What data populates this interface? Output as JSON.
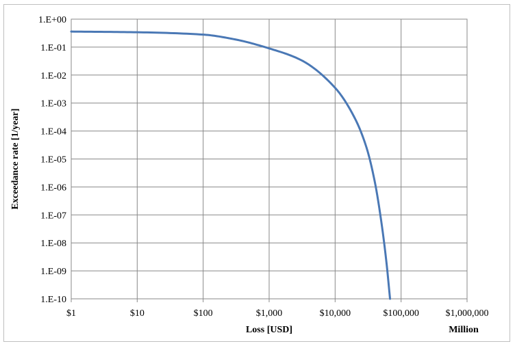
{
  "chart_data": {
    "type": "line",
    "title": "",
    "xlabel": "Loss [USD]",
    "xlabel_note": "Million",
    "ylabel": "Exceedance rate [1/year]",
    "x_scale": "log",
    "y_scale": "log",
    "xlim": [
      1,
      1000000
    ],
    "ylim": [
      1e-10,
      1
    ],
    "grid": true,
    "legend": "none",
    "line_color": "#4a78b5",
    "x_ticks": [
      {
        "value": 1,
        "label": "$1"
      },
      {
        "value": 10,
        "label": "$10"
      },
      {
        "value": 100,
        "label": "$100"
      },
      {
        "value": 1000,
        "label": "$1,000"
      },
      {
        "value": 10000,
        "label": "$10,000"
      },
      {
        "value": 100000,
        "label": "$100,000"
      },
      {
        "value": 1000000,
        "label": "$1,000,000"
      }
    ],
    "y_ticks": [
      {
        "value": 1,
        "label": "1.E+00"
      },
      {
        "value": 0.1,
        "label": "1.E-01"
      },
      {
        "value": 0.01,
        "label": "1.E-02"
      },
      {
        "value": 0.001,
        "label": "1.E-03"
      },
      {
        "value": 0.0001,
        "label": "1.E-04"
      },
      {
        "value": 1e-05,
        "label": "1.E-05"
      },
      {
        "value": 1e-06,
        "label": "1.E-06"
      },
      {
        "value": 1e-07,
        "label": "1.E-07"
      },
      {
        "value": 1e-08,
        "label": "1.E-08"
      },
      {
        "value": 1e-09,
        "label": "1.E-09"
      },
      {
        "value": 1e-10,
        "label": "1.E-10"
      }
    ],
    "series": [
      {
        "points": [
          [
            1,
            0.36
          ],
          [
            10,
            0.34
          ],
          [
            100,
            0.28
          ],
          [
            300,
            0.19
          ],
          [
            1000,
            0.09
          ],
          [
            3000,
            0.035
          ],
          [
            10000,
            0.0035
          ],
          [
            20000,
            0.00028
          ],
          [
            30000,
            2.5e-05
          ],
          [
            40000,
            1.5e-06
          ],
          [
            50000,
            6e-08
          ],
          [
            60000,
            2e-09
          ],
          [
            68000,
            1e-10
          ]
        ]
      }
    ]
  }
}
